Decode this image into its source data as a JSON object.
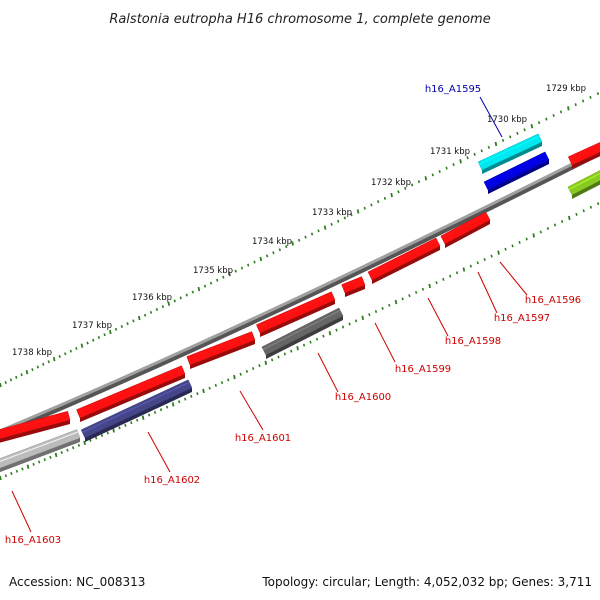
{
  "title": "Ralstonia eutropha H16 chromosome 1, complete genome",
  "accession": "Accession: NC_008313",
  "summary": "Topology: circular; Length: 4,052,032 bp; Genes: 3,711",
  "colors": {
    "backbone": "#808080",
    "ticks": "#2e7d1e",
    "gene_label": "#cc0000",
    "highlight_label": "#0000aa"
  },
  "ruler": [
    {
      "label": "1729 kbp"
    },
    {
      "label": "1730 kbp"
    },
    {
      "label": "1731 kbp"
    },
    {
      "label": "1732 kbp"
    },
    {
      "label": "1733 kbp"
    },
    {
      "label": "1734 kbp"
    },
    {
      "label": "1735 kbp"
    },
    {
      "label": "1736 kbp"
    },
    {
      "label": "1737 kbp"
    },
    {
      "label": "1738 kbp"
    }
  ],
  "genes": [
    {
      "label": "h16_A1595",
      "color": "#00e8f0",
      "strand": "+",
      "highlight": true
    },
    {
      "label": "h16_A1596",
      "color": "#ff1010",
      "strand": "+"
    },
    {
      "label": "h16_A1597",
      "color": "#ff1010",
      "strand": "+"
    },
    {
      "label": "h16_A1598",
      "color": "#ff1010",
      "strand": "+"
    },
    {
      "label": "h16_A1599",
      "color": "#ff1010",
      "strand": "-"
    },
    {
      "label": "h16_A1600",
      "color": "#666666",
      "strand": "+"
    },
    {
      "label": "h16_A1601",
      "color": "#ff1010",
      "strand": "+"
    },
    {
      "label": "h16_A1602",
      "color": "#45458a",
      "strand": "+"
    },
    {
      "label": "h16_A1603",
      "color": "#bbbbbb",
      "strand": "+"
    }
  ]
}
